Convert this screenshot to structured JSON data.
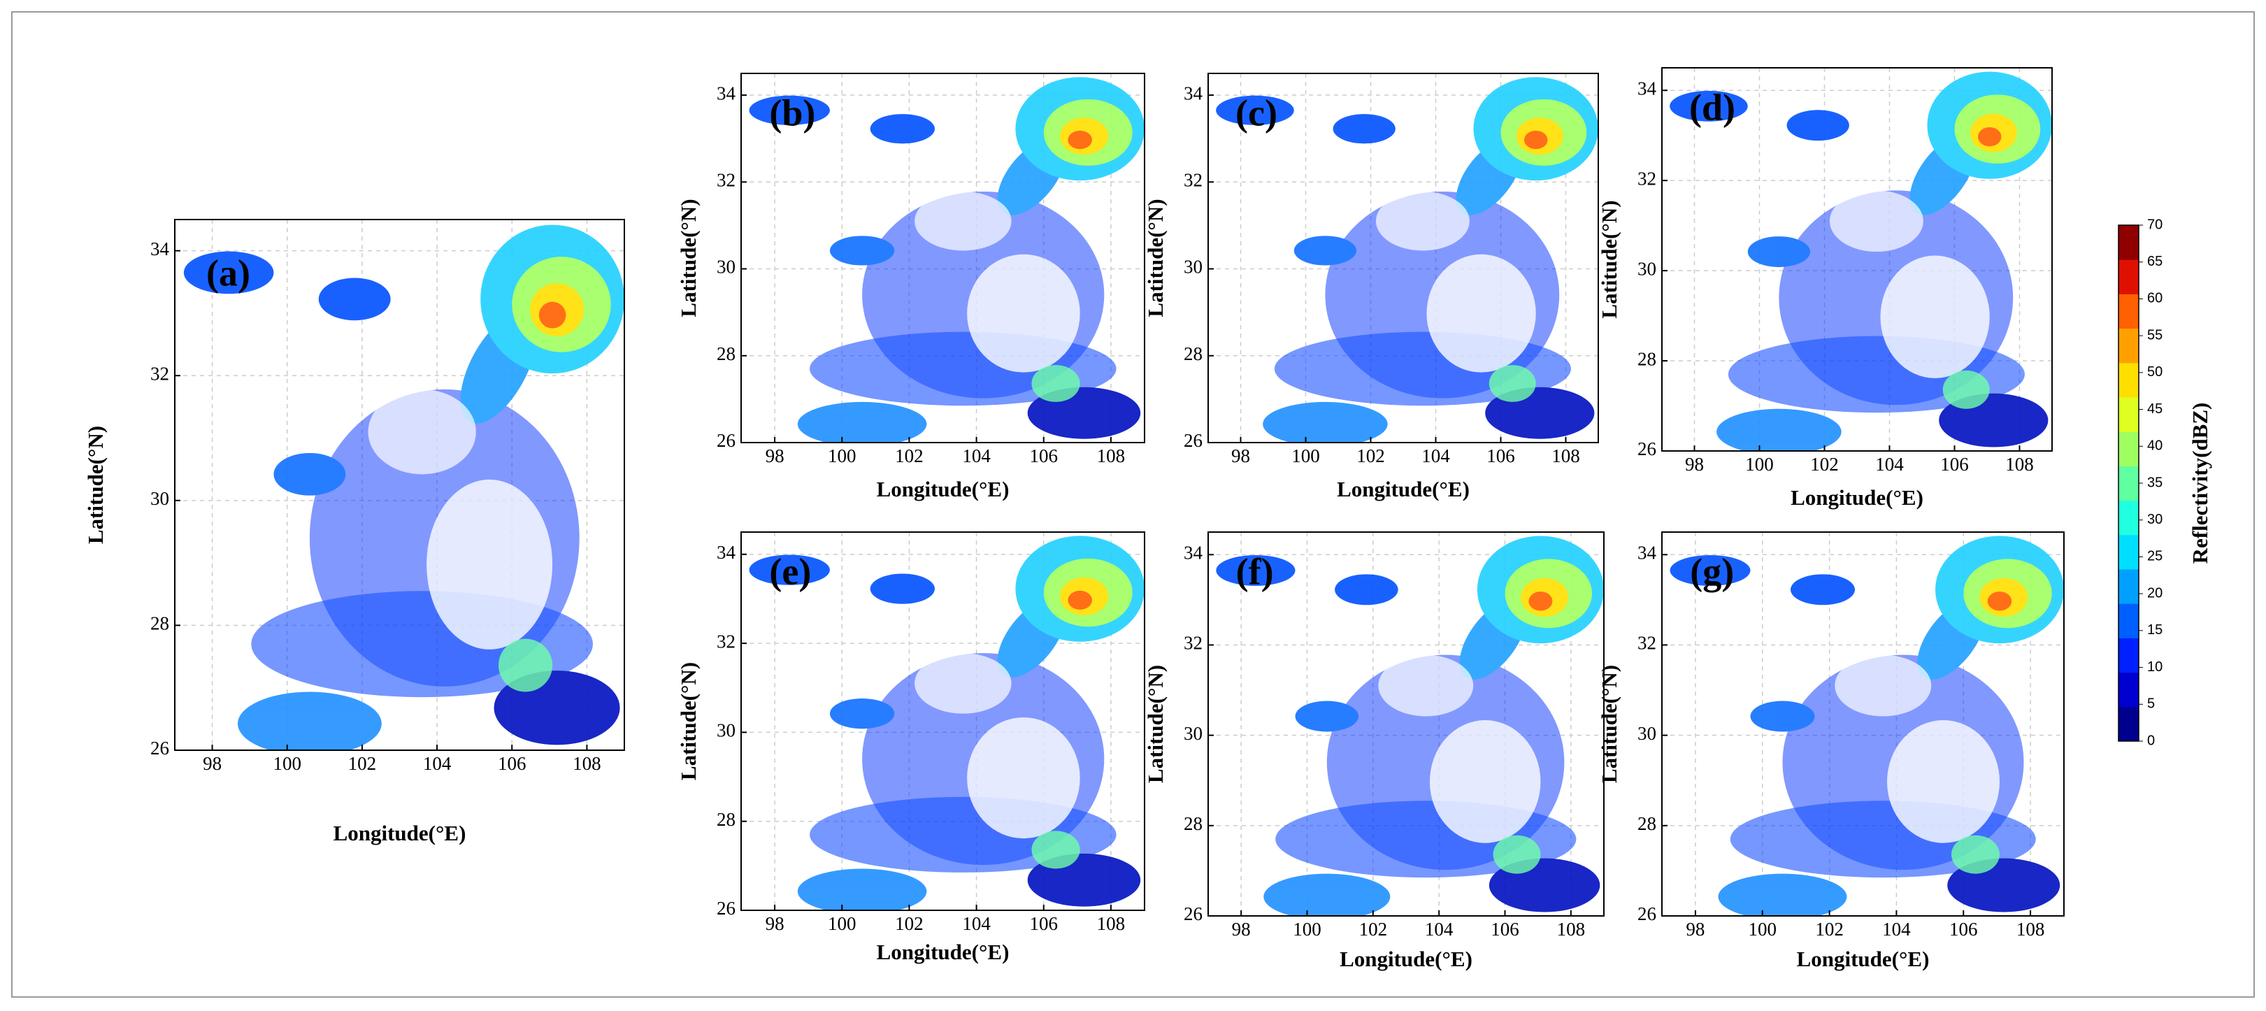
{
  "chart_data": [
    {
      "type": "map",
      "label": "(a)",
      "xlabel": "Longitude(°E)",
      "ylabel": "Latitude(°N)",
      "xlim": [
        97,
        109
      ],
      "ylim": [
        26,
        34.5
      ],
      "xticks": [
        98,
        100,
        102,
        104,
        106,
        108
      ],
      "yticks": [
        26,
        28,
        30,
        32,
        34
      ],
      "grid": true
    },
    {
      "type": "map",
      "label": "(b)",
      "xlabel": "Longitude(°E)",
      "ylabel": "Latitude(°N)",
      "xlim": [
        97,
        109
      ],
      "ylim": [
        26,
        34.5
      ],
      "xticks": [
        98,
        100,
        102,
        104,
        106,
        108
      ],
      "yticks": [
        26,
        28,
        30,
        32,
        34
      ],
      "grid": true
    },
    {
      "type": "map",
      "label": "(c)",
      "xlabel": "Longitude(°E)",
      "ylabel": "Latitude(°N)",
      "xlim": [
        97,
        109
      ],
      "ylim": [
        26,
        34.5
      ],
      "xticks": [
        98,
        100,
        102,
        104,
        106,
        108
      ],
      "yticks": [
        26,
        28,
        30,
        32,
        34
      ],
      "grid": true
    },
    {
      "type": "map",
      "label": "(d)",
      "xlabel": "Longitude(°E)",
      "ylabel": "Latitude(°N)",
      "xlim": [
        97,
        109
      ],
      "ylim": [
        26,
        34.5
      ],
      "xticks": [
        98,
        100,
        102,
        104,
        106,
        108
      ],
      "yticks": [
        26,
        28,
        30,
        32,
        34
      ],
      "grid": true
    },
    {
      "type": "map",
      "label": "(e)",
      "xlabel": "Longitude(°E)",
      "ylabel": "Latitude(°N)",
      "xlim": [
        97,
        109
      ],
      "ylim": [
        26,
        34.5
      ],
      "xticks": [
        98,
        100,
        102,
        104,
        106,
        108
      ],
      "yticks": [
        26,
        28,
        30,
        32,
        34
      ],
      "grid": true
    },
    {
      "type": "map",
      "label": "(f)",
      "xlabel": "Longitude(°E)",
      "ylabel": "Latitude(°N)",
      "xlim": [
        97,
        109
      ],
      "ylim": [
        26,
        34.5
      ],
      "xticks": [
        98,
        100,
        102,
        104,
        106,
        108
      ],
      "yticks": [
        26,
        28,
        30,
        32,
        34
      ],
      "grid": true
    },
    {
      "type": "map",
      "label": "(g)",
      "xlabel": "Longitude(°E)",
      "ylabel": "Latitude(°N)",
      "xlim": [
        97,
        109
      ],
      "ylim": [
        26,
        34.5
      ],
      "xticks": [
        98,
        100,
        102,
        104,
        106,
        108
      ],
      "yticks": [
        26,
        28,
        30,
        32,
        34
      ],
      "grid": true
    }
  ],
  "colorbar": {
    "label": "Reflectivity(dBZ)",
    "lim": [
      0,
      70
    ],
    "ticks": [
      0,
      5,
      10,
      15,
      20,
      25,
      30,
      35,
      40,
      45,
      50,
      55,
      60,
      65,
      70
    ],
    "colors": [
      "#00008f",
      "#0000d0",
      "#0020ff",
      "#0060ff",
      "#00a0ff",
      "#00dfff",
      "#20ffdf",
      "#60ff9f",
      "#a0ff60",
      "#dfff20",
      "#ffdf00",
      "#ffa000",
      "#ff6000",
      "#e01000",
      "#900000"
    ]
  }
}
